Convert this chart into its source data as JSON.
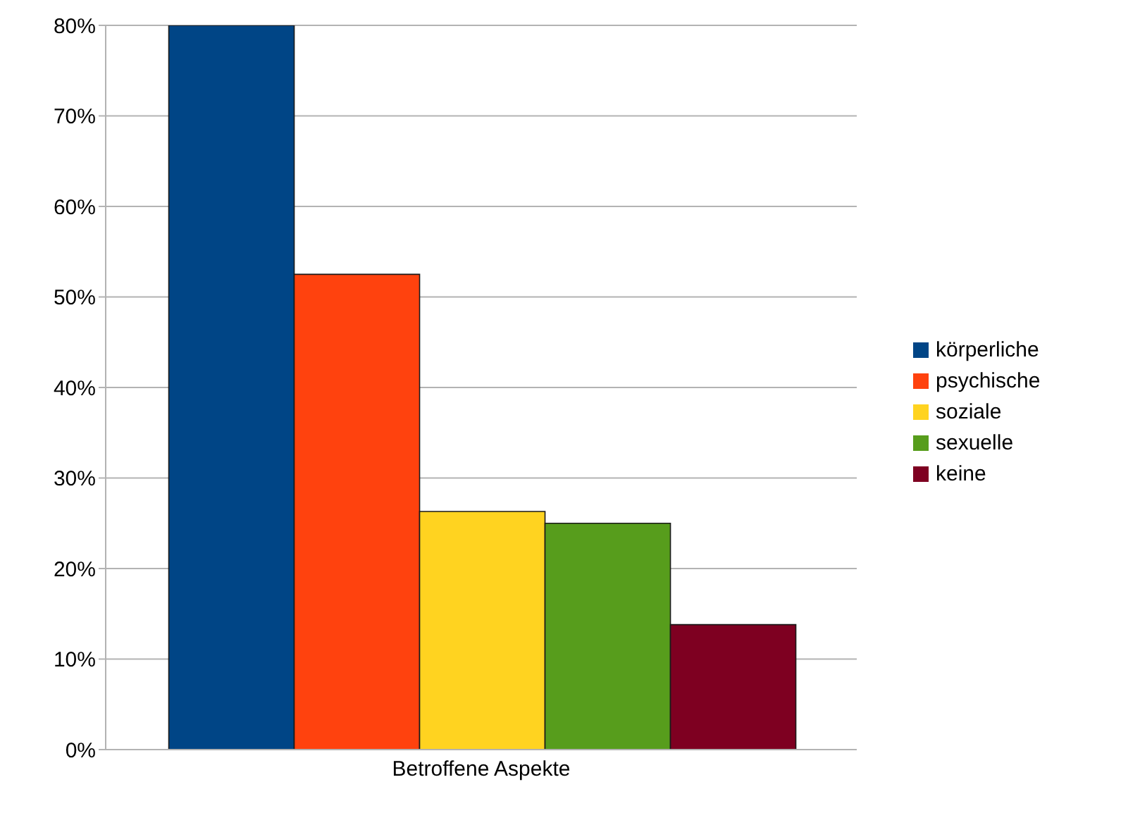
{
  "chart_data": {
    "type": "bar",
    "categories": [
      "Betroffene Aspekte"
    ],
    "series": [
      {
        "name": "körperliche",
        "color": "#004586",
        "values": [
          80
        ]
      },
      {
        "name": "psychische",
        "color": "#ff420e",
        "values": [
          52.5
        ]
      },
      {
        "name": "soziale",
        "color": "#ffd320",
        "values": [
          26.3
        ]
      },
      {
        "name": "sexuelle",
        "color": "#579d1c",
        "values": [
          25
        ]
      },
      {
        "name": "keine",
        "color": "#7e0021",
        "values": [
          13.8
        ]
      }
    ],
    "ylim": [
      0,
      80
    ],
    "yticks": [
      {
        "value": 0,
        "label": "0%"
      },
      {
        "value": 10,
        "label": "10%"
      },
      {
        "value": 20,
        "label": "20%"
      },
      {
        "value": 30,
        "label": "30%"
      },
      {
        "value": 40,
        "label": "40%"
      },
      {
        "value": 50,
        "label": "50%"
      },
      {
        "value": 60,
        "label": "60%"
      },
      {
        "value": 70,
        "label": "70%"
      },
      {
        "value": 80,
        "label": "80%"
      }
    ],
    "grid": "y",
    "legend": "right"
  }
}
